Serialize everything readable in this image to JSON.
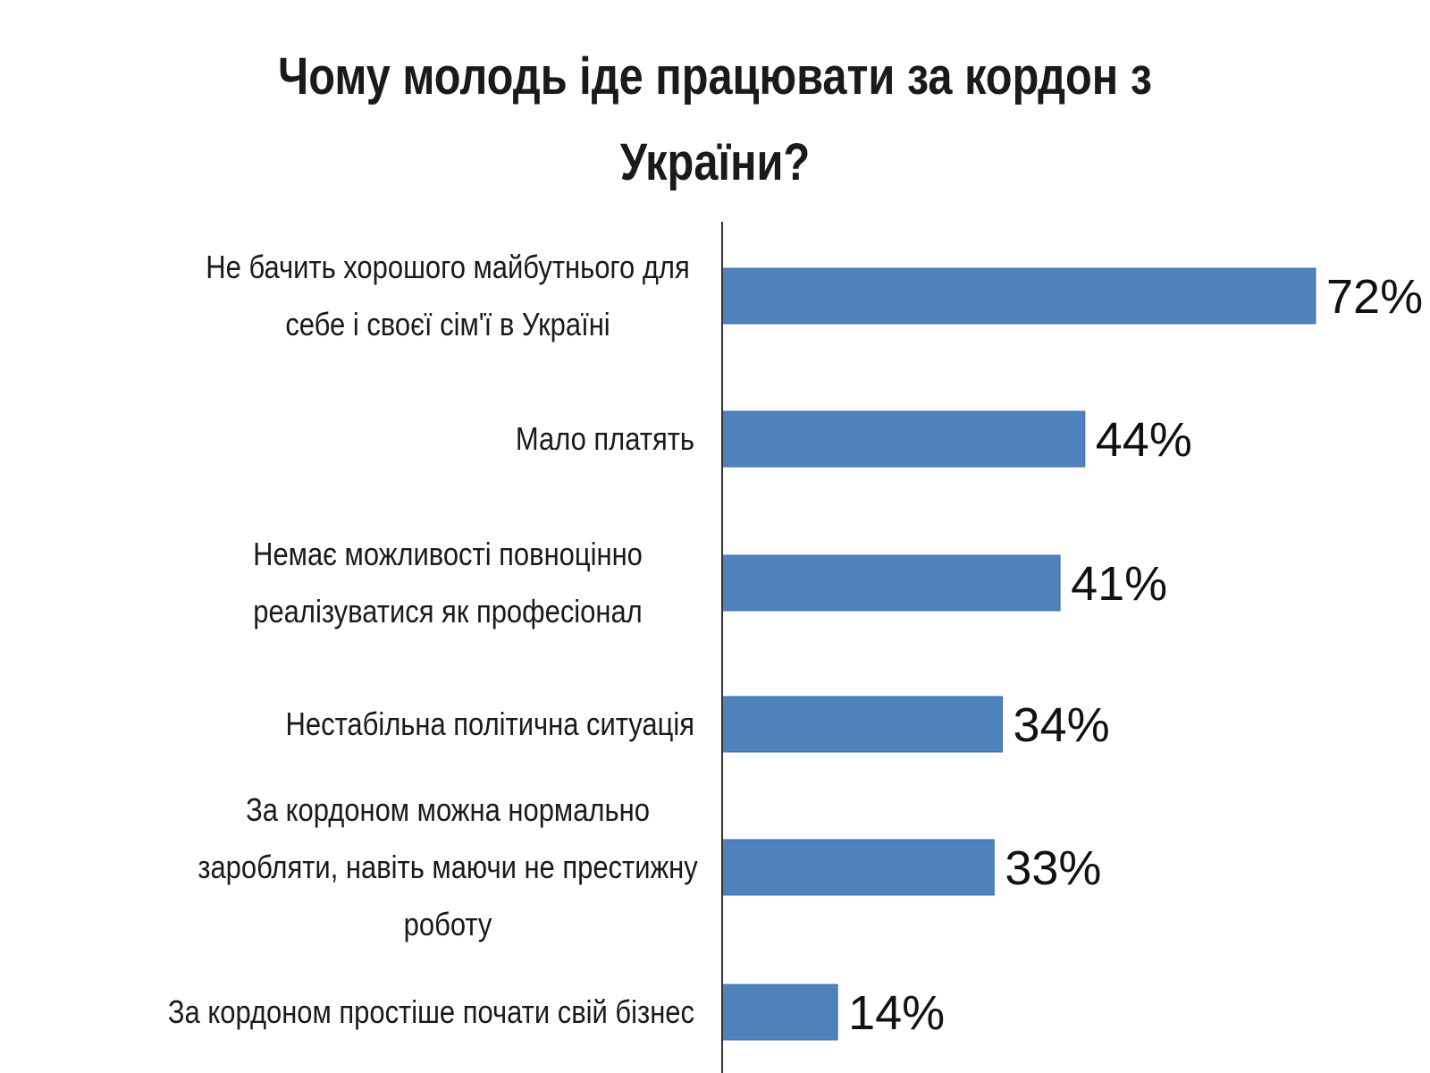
{
  "chart_data": {
    "type": "bar",
    "orientation": "horizontal",
    "title_lines": [
      "Чому молодь іде працювати за кордон з",
      "України?"
    ],
    "categories": [
      [
        "Не бачить хорошого майбутнього для",
        "себе і своєї сім'ї в Україні"
      ],
      [
        "Мало платять"
      ],
      [
        "Немає можливості повноцінно",
        "реалізуватися як професіонал"
      ],
      [
        "Нестабільна політична ситуація"
      ],
      [
        "За кордоном можна нормально",
        "заробляти, навіть маючи не престижну",
        "роботу"
      ],
      [
        "За кордоном простіше почати свій бізнес"
      ]
    ],
    "values": [
      72,
      44,
      41,
      34,
      33,
      14
    ],
    "value_labels": [
      "72%",
      "44%",
      "41%",
      "34%",
      "33%",
      "14%"
    ],
    "xlim": [
      0,
      80
    ],
    "grid": false,
    "legend": "none",
    "bar_color": "#4f81bd",
    "axis_color": "#333333"
  }
}
